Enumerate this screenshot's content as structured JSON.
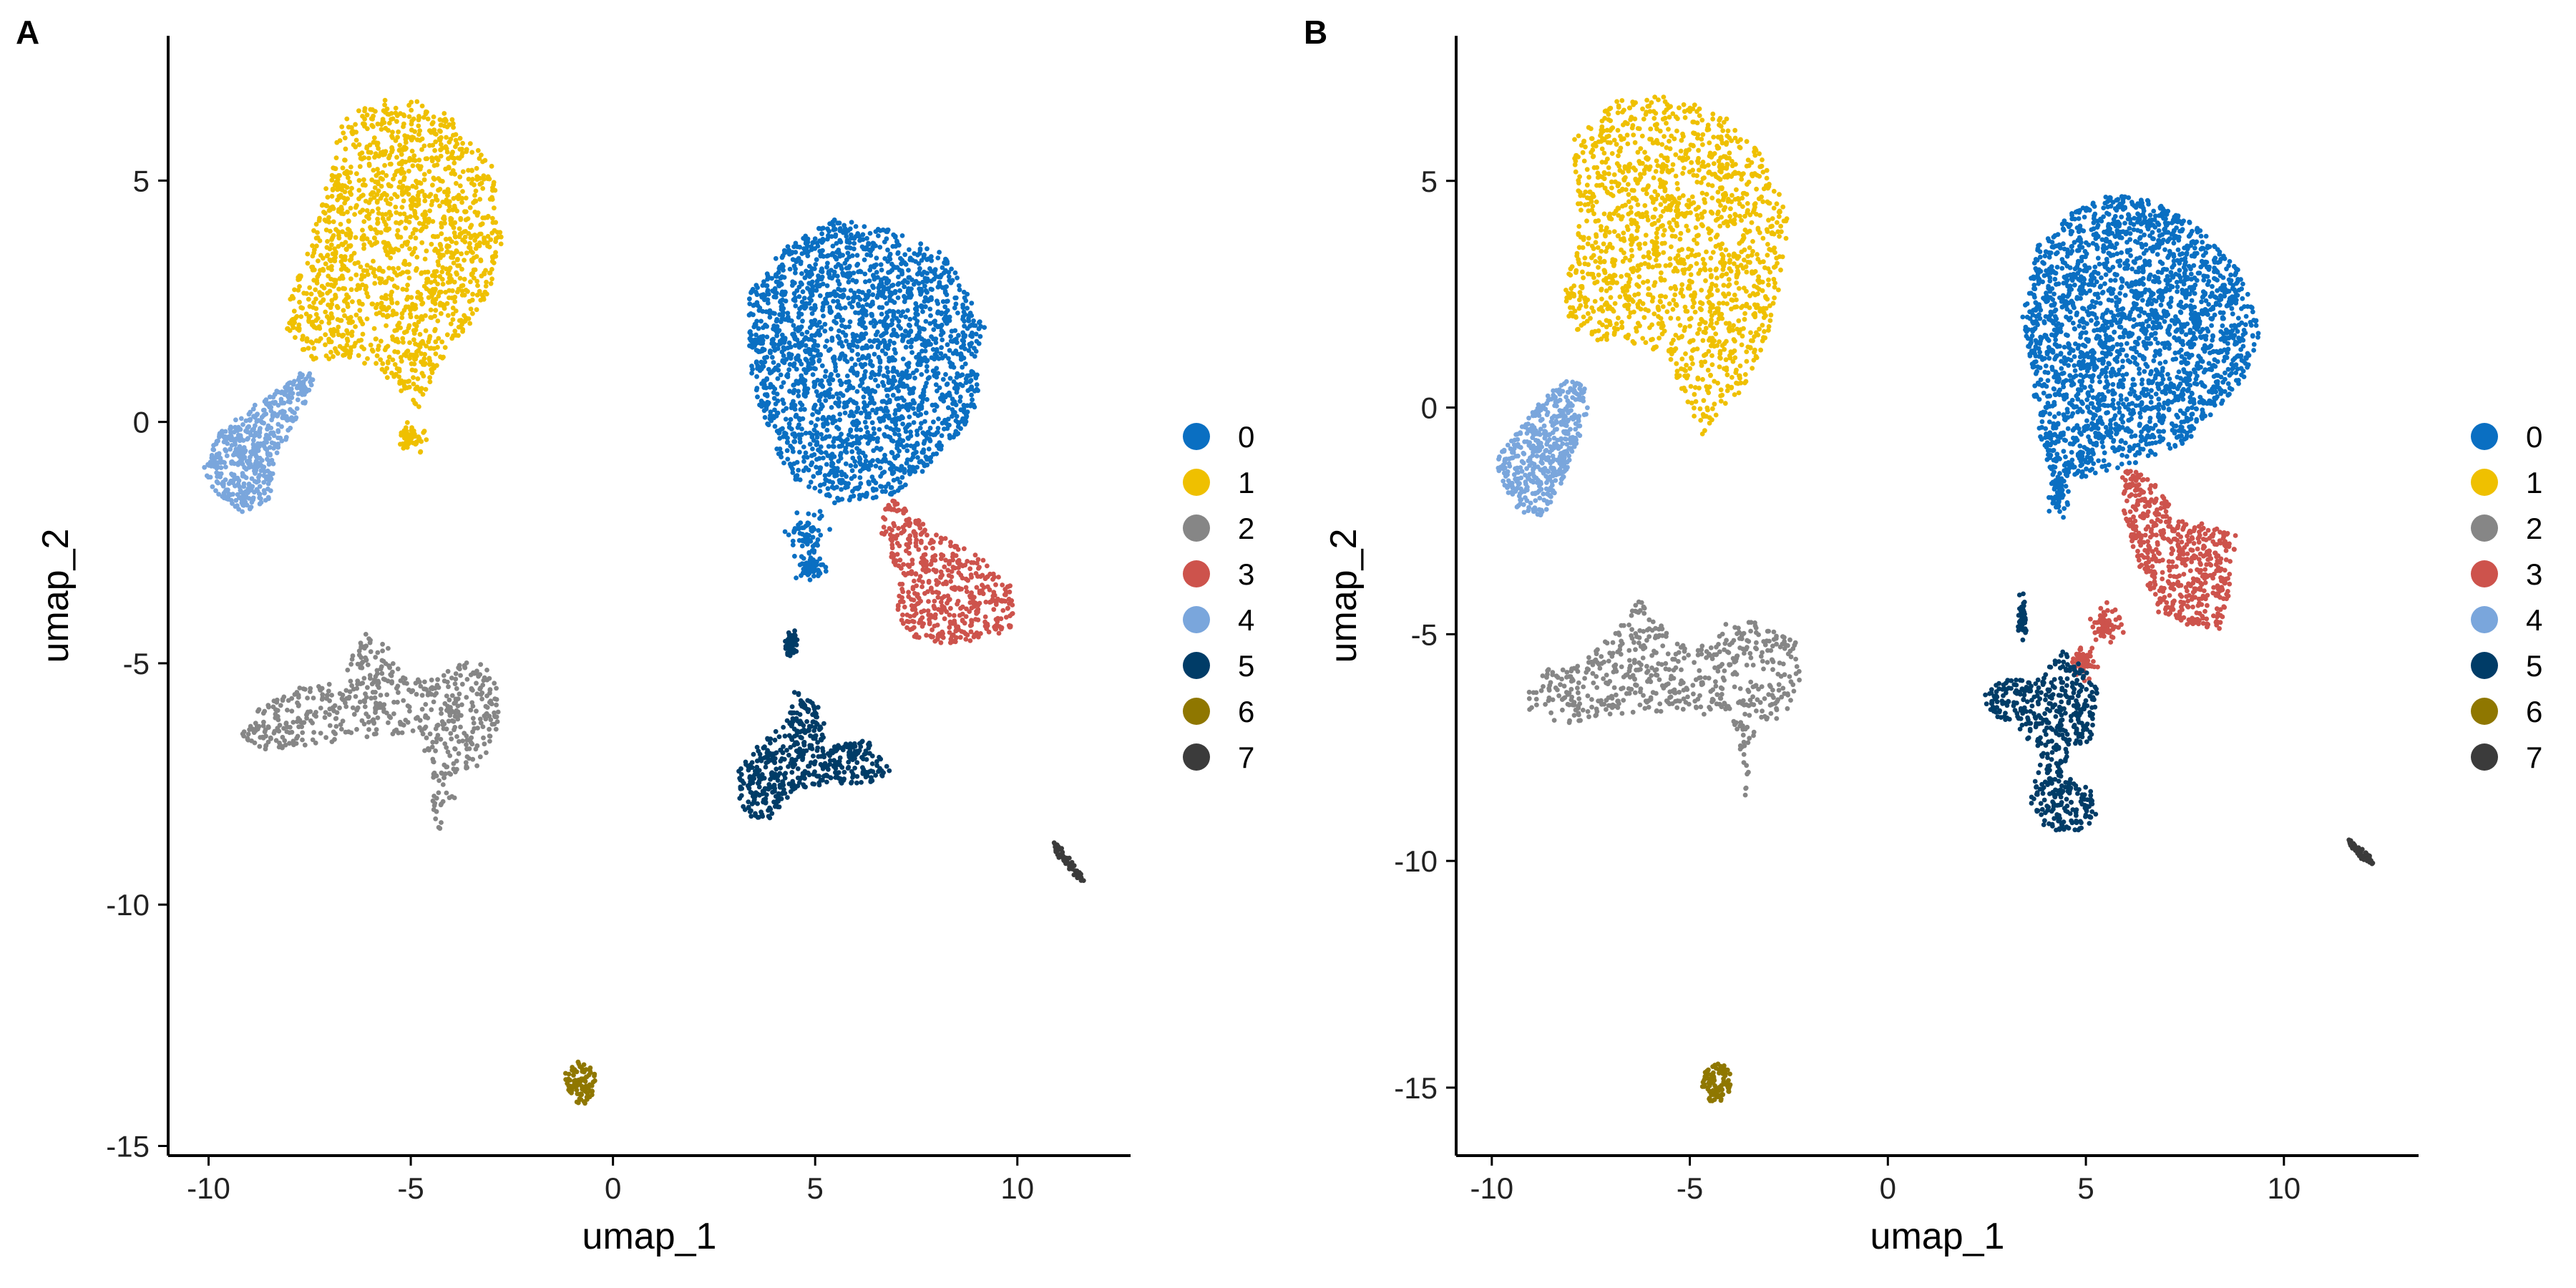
{
  "colors": {
    "0": "#0A6FC2",
    "1": "#EFC000",
    "2": "#868686",
    "3": "#CD534C",
    "4": "#7AA6DC",
    "5": "#003C67",
    "6": "#8F7700",
    "7": "#3B3B3B"
  },
  "chart_data": [
    {
      "type": "scatter",
      "panel_label": "A",
      "xlabel": "umap_1",
      "ylabel": "umap_2",
      "xlim": [
        -11,
        12.8
      ],
      "ylim": [
        -15.2,
        8
      ],
      "x_ticks": [
        -10,
        -5,
        0,
        5,
        10
      ],
      "y_ticks": [
        5,
        0,
        -5,
        -10,
        -15
      ],
      "legend_placement": "right",
      "legend": [
        "0",
        "1",
        "2",
        "3",
        "4",
        "5",
        "6",
        "7"
      ],
      "grid": false,
      "clusters": [
        {
          "name": "0",
          "shape": [
            [
              3.3,
              2.6
            ],
            [
              4.2,
              3.6
            ],
            [
              5.5,
              4.2
            ],
            [
              6.8,
              4.0
            ],
            [
              8.2,
              3.5
            ],
            [
              9.2,
              2.0
            ],
            [
              9.0,
              0.2
            ],
            [
              8.0,
              -0.8
            ],
            [
              7.0,
              -1.5
            ],
            [
              5.5,
              -1.7
            ],
            [
              4.6,
              -1.3
            ],
            [
              4.0,
              -0.6
            ],
            [
              3.4,
              0.7
            ]
          ],
          "extra": [
            [
              4.8,
              -2.3,
              0.45,
              0.55
            ],
            [
              4.9,
              -3.0,
              0.25,
              0.25
            ]
          ],
          "n": 2200
        },
        {
          "name": "1",
          "shape": [
            [
              -8.0,
              2.5
            ],
            [
              -7.2,
              4.5
            ],
            [
              -6.7,
              6.3
            ],
            [
              -5.3,
              6.8
            ],
            [
              -4.1,
              6.4
            ],
            [
              -3.0,
              5.3
            ],
            [
              -2.7,
              3.9
            ],
            [
              -3.1,
              2.5
            ],
            [
              -4.3,
              1.2
            ],
            [
              -4.8,
              0.3
            ],
            [
              -5.6,
              0.9
            ],
            [
              -6.6,
              1.3
            ],
            [
              -7.5,
              1.3
            ],
            [
              -8.1,
              1.9
            ]
          ],
          "extra": [
            [
              -5.0,
              -0.3,
              0.3,
              0.3
            ]
          ],
          "n": 1500
        },
        {
          "name": "2",
          "shape": [
            [
              -9.2,
              -6.5
            ],
            [
              -8.6,
              -5.7
            ],
            [
              -7.7,
              -5.5
            ],
            [
              -6.7,
              -5.4
            ],
            [
              -6.2,
              -4.3
            ],
            [
              -5.6,
              -4.6
            ],
            [
              -5.0,
              -5.3
            ],
            [
              -4.3,
              -5.2
            ],
            [
              -3.4,
              -4.9
            ],
            [
              -2.9,
              -5.3
            ],
            [
              -2.8,
              -6.3
            ],
            [
              -3.2,
              -7.1
            ],
            [
              -3.8,
              -7.3
            ],
            [
              -4.0,
              -8.2
            ],
            [
              -4.4,
              -8.6
            ],
            [
              -4.5,
              -7.6
            ],
            [
              -4.8,
              -6.4
            ],
            [
              -6.6,
              -6.6
            ],
            [
              -8.6,
              -6.8
            ]
          ],
          "n": 600
        },
        {
          "name": "3",
          "shape": [
            [
              6.8,
              -1.5
            ],
            [
              7.5,
              -2.0
            ],
            [
              8.4,
              -2.5
            ],
            [
              9.4,
              -2.9
            ],
            [
              9.9,
              -3.4
            ],
            [
              9.9,
              -4.3
            ],
            [
              9.3,
              -4.5
            ],
            [
              8.2,
              -4.6
            ],
            [
              7.5,
              -4.5
            ],
            [
              7.0,
              -4.0
            ],
            [
              7.1,
              -3.2
            ],
            [
              6.6,
              -2.3
            ]
          ],
          "n": 500
        },
        {
          "name": "4",
          "shape": [
            [
              -10.2,
              -0.9
            ],
            [
              -9.7,
              -0.2
            ],
            [
              -8.8,
              0.4
            ],
            [
              -8.2,
              0.7
            ],
            [
              -7.6,
              1.1
            ],
            [
              -7.3,
              0.8
            ],
            [
              -7.8,
              0.1
            ],
            [
              -8.3,
              -0.7
            ],
            [
              -8.5,
              -1.6
            ],
            [
              -9.1,
              -1.9
            ],
            [
              -9.8,
              -1.5
            ]
          ],
          "n": 500
        },
        {
          "name": "5",
          "shape": [
            [
              3.0,
              -7.3
            ],
            [
              3.6,
              -6.7
            ],
            [
              4.3,
              -6.2
            ],
            [
              4.5,
              -5.5
            ],
            [
              5.2,
              -6.0
            ],
            [
              5.3,
              -6.7
            ],
            [
              6.3,
              -6.6
            ],
            [
              6.9,
              -7.2
            ],
            [
              6.4,
              -7.5
            ],
            [
              5.3,
              -7.5
            ],
            [
              4.5,
              -7.6
            ],
            [
              3.8,
              -8.3
            ],
            [
              3.2,
              -8.1
            ]
          ],
          "extra": [
            [
              4.4,
              -4.6,
              0.15,
              0.2
            ]
          ],
          "n": 500
        },
        {
          "name": "6",
          "shape": [
            [
              -1.2,
              -13.5
            ],
            [
              -0.8,
              -13.2
            ],
            [
              -0.4,
              -13.5
            ],
            [
              -0.5,
              -14.0
            ],
            [
              -0.8,
              -14.2
            ],
            [
              -1.1,
              -13.9
            ]
          ],
          "n": 90
        },
        {
          "name": "7",
          "shape": [
            [
              10.9,
              -8.7
            ],
            [
              11.2,
              -8.9
            ],
            [
              11.6,
              -9.4
            ],
            [
              11.7,
              -9.6
            ],
            [
              11.4,
              -9.4
            ],
            [
              10.9,
              -8.9
            ]
          ],
          "n": 60
        }
      ]
    },
    {
      "type": "scatter",
      "panel_label": "B",
      "xlabel": "umap_1",
      "ylabel": "umap_2",
      "xlim": [
        -10.9,
        13.4
      ],
      "ylim": [
        -16.5,
        8.2
      ],
      "x_ticks": [
        -10,
        -5,
        0,
        5,
        10
      ],
      "y_ticks": [
        5,
        0,
        -5,
        -10,
        -15
      ],
      "legend_placement": "right",
      "legend": [
        "0",
        "1",
        "2",
        "3",
        "4",
        "5",
        "6",
        "7"
      ],
      "grid": false,
      "clusters": [
        {
          "name": "0",
          "shape": [
            [
              3.4,
              2.0
            ],
            [
              3.8,
              3.6
            ],
            [
              4.6,
              4.3
            ],
            [
              5.5,
              4.7
            ],
            [
              6.6,
              4.6
            ],
            [
              7.8,
              4.0
            ],
            [
              8.9,
              3.0
            ],
            [
              9.4,
              1.7
            ],
            [
              9.0,
              0.6
            ],
            [
              7.5,
              -0.8
            ],
            [
              6.4,
              -1.2
            ],
            [
              5.2,
              -1.5
            ],
            [
              4.2,
              -1.6
            ],
            [
              3.9,
              -0.9
            ],
            [
              3.6,
              0.6
            ]
          ],
          "extra": [
            [
              4.3,
              -1.9,
              0.25,
              0.4
            ]
          ],
          "n": 2300
        },
        {
          "name": "1",
          "shape": [
            [
              -8.2,
              2.5
            ],
            [
              -7.8,
              4.0
            ],
            [
              -8.0,
              5.9
            ],
            [
              -6.8,
              6.8
            ],
            [
              -5.4,
              6.9
            ],
            [
              -4.1,
              6.4
            ],
            [
              -3.0,
              5.4
            ],
            [
              -2.5,
              4.2
            ],
            [
              -2.7,
              2.5
            ],
            [
              -3.2,
              1.2
            ],
            [
              -3.8,
              0.2
            ],
            [
              -4.7,
              -0.6
            ],
            [
              -5.5,
              1.0
            ],
            [
              -6.3,
              1.4
            ],
            [
              -7.2,
              1.4
            ],
            [
              -8.0,
              1.8
            ]
          ],
          "n": 1500
        },
        {
          "name": "2",
          "shape": [
            [
              -9.3,
              -6.6
            ],
            [
              -8.7,
              -5.8
            ],
            [
              -7.8,
              -5.6
            ],
            [
              -6.9,
              -5.0
            ],
            [
              -6.3,
              -4.2
            ],
            [
              -5.6,
              -4.9
            ],
            [
              -4.9,
              -5.4
            ],
            [
              -4.3,
              -4.8
            ],
            [
              -3.4,
              -4.7
            ],
            [
              -2.3,
              -5.2
            ],
            [
              -2.2,
              -6.0
            ],
            [
              -2.6,
              -6.8
            ],
            [
              -3.3,
              -7.0
            ],
            [
              -3.5,
              -8.0
            ],
            [
              -3.6,
              -8.6
            ],
            [
              -3.8,
              -7.7
            ],
            [
              -4.0,
              -6.8
            ],
            [
              -6.1,
              -6.7
            ],
            [
              -8.4,
              -7.0
            ]
          ],
          "n": 600
        },
        {
          "name": "3",
          "shape": [
            [
              5.9,
              -1.3
            ],
            [
              6.6,
              -1.5
            ],
            [
              7.3,
              -2.4
            ],
            [
              8.1,
              -2.6
            ],
            [
              8.8,
              -2.8
            ],
            [
              8.7,
              -3.9
            ],
            [
              8.4,
              -4.9
            ],
            [
              7.5,
              -4.8
            ],
            [
              6.8,
              -4.5
            ],
            [
              6.3,
              -3.4
            ],
            [
              5.9,
              -2.3
            ]
          ],
          "extra": [
            [
              5.5,
              -4.8,
              0.35,
              0.35
            ],
            [
              4.9,
              -5.6,
              0.3,
              0.3
            ]
          ],
          "n": 550
        },
        {
          "name": "4",
          "shape": [
            [
              -9.9,
              -1.2
            ],
            [
              -9.4,
              -0.5
            ],
            [
              -8.8,
              0.1
            ],
            [
              -8.3,
              0.5
            ],
            [
              -7.8,
              0.7
            ],
            [
              -7.5,
              0.2
            ],
            [
              -7.8,
              -0.7
            ],
            [
              -8.2,
              -1.6
            ],
            [
              -8.7,
              -2.4
            ],
            [
              -9.3,
              -2.3
            ],
            [
              -9.7,
              -1.7
            ]
          ],
          "n": 480
        },
        {
          "name": "5",
          "shape": [
            [
              2.3,
              -6.3
            ],
            [
              3.0,
              -6.0
            ],
            [
              3.8,
              -6.0
            ],
            [
              4.5,
              -5.3
            ],
            [
              4.9,
              -5.7
            ],
            [
              5.3,
              -6.2
            ],
            [
              5.2,
              -7.3
            ],
            [
              4.6,
              -7.6
            ],
            [
              4.4,
              -8.1
            ],
            [
              5.1,
              -8.4
            ],
            [
              5.3,
              -9.0
            ],
            [
              4.9,
              -9.4
            ],
            [
              4.0,
              -9.3
            ],
            [
              3.6,
              -8.7
            ],
            [
              3.8,
              -7.6
            ],
            [
              3.4,
              -7.2
            ],
            [
              2.7,
              -6.8
            ]
          ],
          "extra": [
            [
              3.4,
              -4.6,
              0.12,
              0.35
            ]
          ],
          "n": 520
        },
        {
          "name": "6",
          "shape": [
            [
              -4.6,
              -14.6
            ],
            [
              -4.2,
              -14.4
            ],
            [
              -3.9,
              -14.8
            ],
            [
              -4.1,
              -15.3
            ],
            [
              -4.5,
              -15.3
            ],
            [
              -4.7,
              -15.0
            ]
          ],
          "n": 90
        },
        {
          "name": "7",
          "shape": [
            [
              11.6,
              -9.5
            ],
            [
              11.8,
              -9.6
            ],
            [
              12.2,
              -9.9
            ],
            [
              12.3,
              -10.1
            ],
            [
              12.0,
              -10.0
            ],
            [
              11.7,
              -9.7
            ]
          ],
          "n": 60
        }
      ]
    }
  ]
}
